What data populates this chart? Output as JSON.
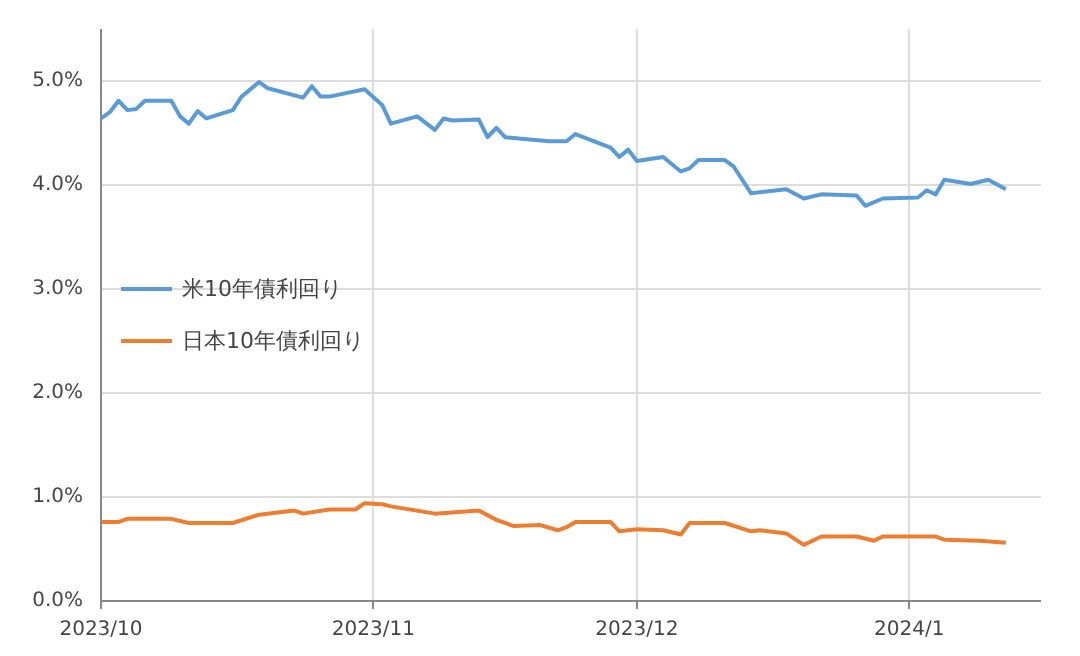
{
  "chart_data": {
    "type": "line",
    "x": [
      "2023-10-01",
      "2023-10-02",
      "2023-10-03",
      "2023-10-04",
      "2023-10-05",
      "2023-10-06",
      "2023-10-09",
      "2023-10-10",
      "2023-10-11",
      "2023-10-12",
      "2023-10-13",
      "2023-10-16",
      "2023-10-17",
      "2023-10-19",
      "2023-10-20",
      "2023-10-24",
      "2023-10-25",
      "2023-10-26",
      "2023-10-27",
      "2023-10-31",
      "2023-11-02",
      "2023-11-03",
      "2023-11-06",
      "2023-11-08",
      "2023-11-09",
      "2023-11-10",
      "2023-11-13",
      "2023-11-14",
      "2023-11-15",
      "2023-11-16",
      "2023-11-21",
      "2023-11-23",
      "2023-11-24",
      "2023-11-28",
      "2023-11-29",
      "2023-11-30",
      "2023-12-01",
      "2023-12-04",
      "2023-12-06",
      "2023-12-07",
      "2023-12-08",
      "2023-12-11",
      "2023-12-12",
      "2023-12-14",
      "2023-12-18",
      "2023-12-20",
      "2023-12-22",
      "2023-12-26",
      "2023-12-27",
      "2023-12-29",
      "2024-01-02",
      "2024-01-03",
      "2024-01-04",
      "2024-01-05",
      "2024-01-08",
      "2024-01-10",
      "2024-01-12"
    ],
    "series": [
      {
        "name": "米10年債利回り",
        "color": "#5b9bd5",
        "values": [
          4.64,
          4.7,
          4.81,
          4.72,
          4.73,
          4.81,
          4.81,
          4.66,
          4.59,
          4.71,
          4.64,
          4.72,
          4.85,
          4.99,
          4.93,
          4.84,
          4.95,
          4.85,
          4.85,
          4.92,
          4.77,
          4.59,
          4.66,
          4.53,
          4.64,
          4.62,
          4.63,
          4.46,
          4.55,
          4.46,
          4.42,
          4.42,
          4.49,
          4.36,
          4.27,
          4.34,
          4.23,
          4.27,
          4.13,
          4.16,
          4.24,
          4.24,
          4.18,
          3.92,
          3.96,
          3.87,
          3.91,
          3.9,
          3.8,
          3.87,
          3.88,
          3.95,
          3.91,
          4.05,
          4.01,
          4.05,
          3.96
        ]
      },
      {
        "name": "日本10年債利回り",
        "color": "#ed7d31",
        "x": [
          "2023-10-01",
          "2023-10-03",
          "2023-10-04",
          "2023-10-09",
          "2023-10-11",
          "2023-10-16",
          "2023-10-19",
          "2023-10-23",
          "2023-10-24",
          "2023-10-27",
          "2023-10-30",
          "2023-10-31",
          "2023-11-02",
          "2023-11-03",
          "2023-11-08",
          "2023-11-13",
          "2023-11-15",
          "2023-11-17",
          "2023-11-20",
          "2023-11-22",
          "2023-11-23",
          "2023-11-24",
          "2023-11-28",
          "2023-11-29",
          "2023-12-01",
          "2023-12-04",
          "2023-12-06",
          "2023-12-07",
          "2023-12-11",
          "2023-12-14",
          "2023-12-15",
          "2023-12-18",
          "2023-12-20",
          "2023-12-22",
          "2023-12-26",
          "2023-12-28",
          "2023-12-29",
          "2024-01-04",
          "2024-01-05",
          "2024-01-09",
          "2024-01-12"
        ],
        "values": [
          0.76,
          0.76,
          0.79,
          0.79,
          0.75,
          0.75,
          0.83,
          0.87,
          0.84,
          0.88,
          0.88,
          0.94,
          0.93,
          0.91,
          0.84,
          0.87,
          0.78,
          0.72,
          0.73,
          0.68,
          0.71,
          0.76,
          0.76,
          0.67,
          0.69,
          0.68,
          0.64,
          0.75,
          0.75,
          0.67,
          0.68,
          0.65,
          0.54,
          0.62,
          0.62,
          0.58,
          0.62,
          0.62,
          0.59,
          0.58,
          0.56
        ]
      }
    ],
    "xlim": [
      "2023-10-01",
      "2024-01-16"
    ],
    "xticks": [
      {
        "value": "2023-10-01",
        "label": "2023/10"
      },
      {
        "value": "2023-11-01",
        "label": "2023/11"
      },
      {
        "value": "2023-12-01",
        "label": "2023/12"
      },
      {
        "value": "2024-01-01",
        "label": "2024/1"
      }
    ],
    "ylim": [
      0,
      5.5
    ],
    "yticks": [
      {
        "value": 0,
        "label": "0.0%"
      },
      {
        "value": 1,
        "label": "1.0%"
      },
      {
        "value": 2,
        "label": "2.0%"
      },
      {
        "value": 3,
        "label": "3.0%"
      },
      {
        "value": 4,
        "label": "4.0%"
      },
      {
        "value": 5,
        "label": "5.0%"
      }
    ],
    "grid": true,
    "legend": "left",
    "marker": "none",
    "line_style": "solid"
  }
}
